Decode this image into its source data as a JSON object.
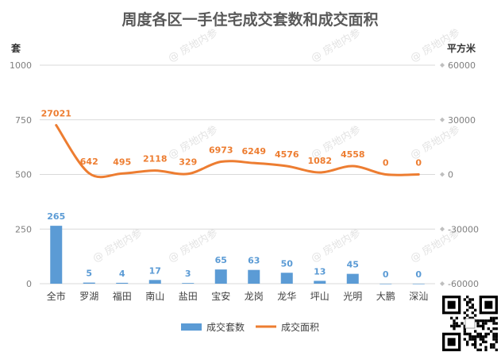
{
  "chart_data": {
    "type": "bar+line",
    "title": "周度各区一手住宅成交套数和成交面积",
    "left_axis_unit": "套",
    "right_axis_unit": "平方米",
    "categories": [
      "全市",
      "罗湖",
      "福田",
      "南山",
      "盐田",
      "宝安",
      "龙岗",
      "龙华",
      "坪山",
      "光明",
      "大鹏",
      "深汕"
    ],
    "left_axis": {
      "ylim": [
        0,
        1000
      ],
      "ticks": [
        "0",
        "250",
        "500",
        "750",
        "1000"
      ]
    },
    "right_axis": {
      "ylim": [
        -60000,
        60000
      ],
      "ticks": [
        "-60000",
        "-30000",
        "0",
        "30000",
        "60000"
      ]
    },
    "series": [
      {
        "name": "成交套数",
        "type": "bar",
        "axis": "left",
        "color": "#5b9bd5",
        "values": [
          265,
          5,
          4,
          17,
          3,
          65,
          63,
          50,
          13,
          45,
          0,
          0
        ]
      },
      {
        "name": "成交面积",
        "type": "line",
        "axis": "right",
        "color": "#ed7d31",
        "values": [
          27021,
          642,
          495,
          2118,
          329,
          6973,
          6249,
          4576,
          1082,
          4558,
          0,
          0
        ]
      }
    ],
    "legend_position": "bottom",
    "grid": true
  },
  "watermark": "房地内参",
  "qr_icon": "qr-code-icon"
}
